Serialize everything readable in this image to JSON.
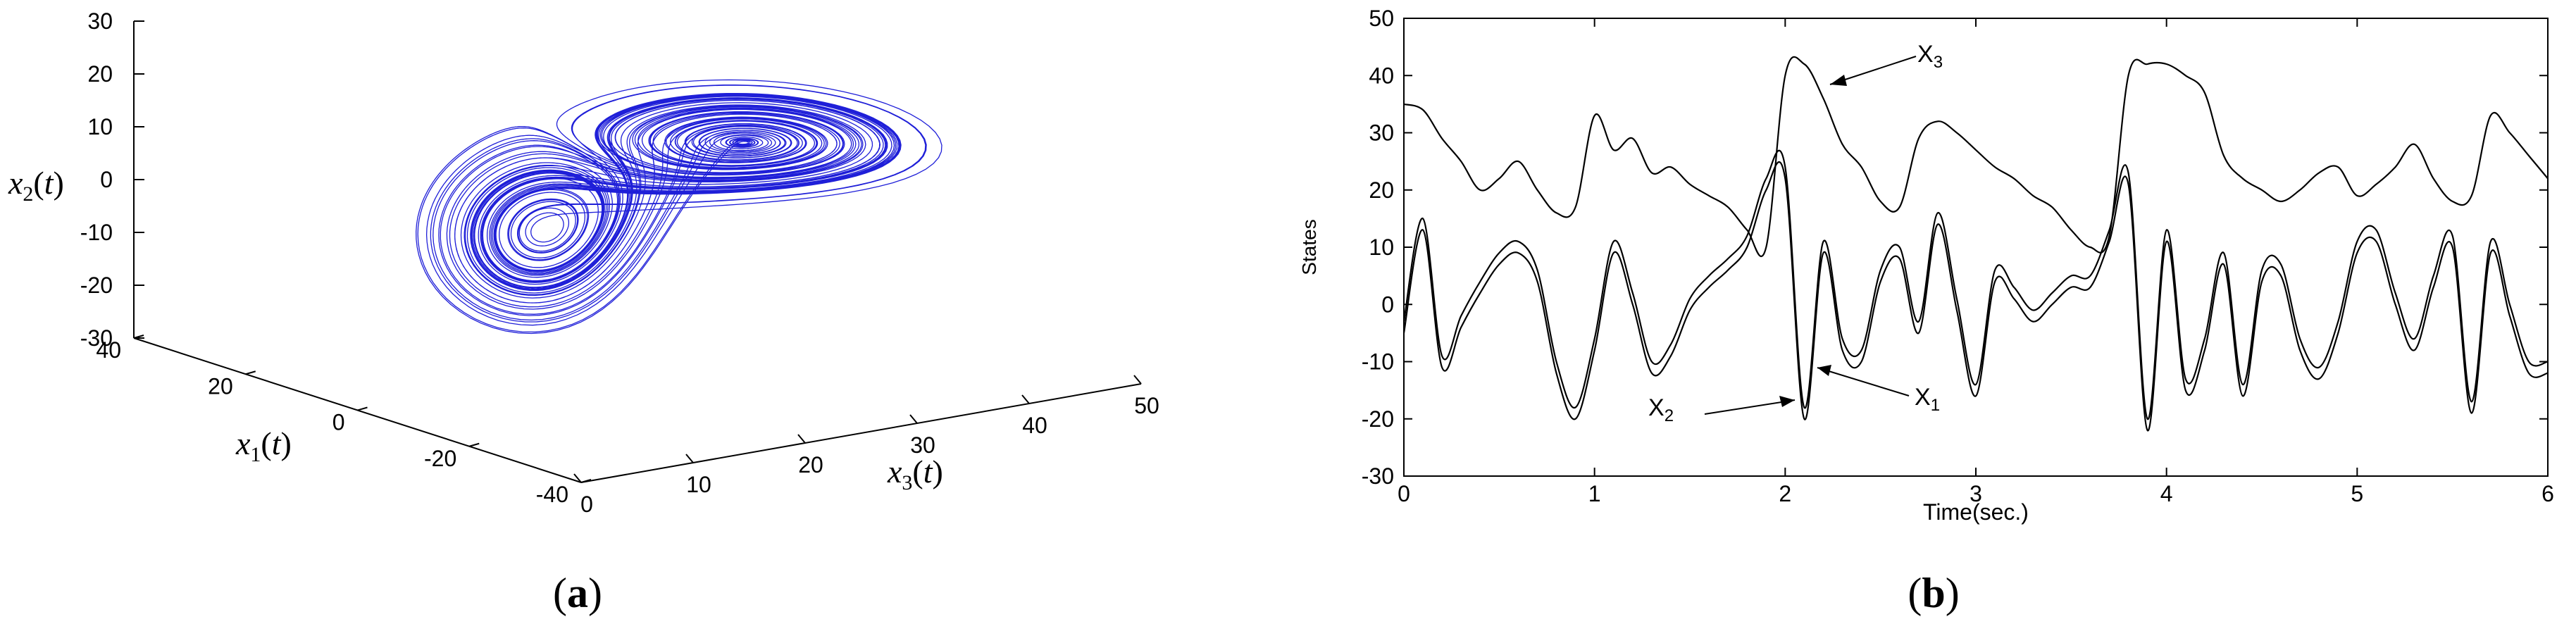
{
  "panels": {
    "a": {
      "caption_prefix": "(",
      "caption_letter": "a",
      "caption_suffix": ")"
    },
    "b": {
      "caption_prefix": "(",
      "caption_letter": "b",
      "caption_suffix": ")"
    }
  },
  "colors": {
    "trajectory": "#1f1fd8",
    "traces": "#000000",
    "axes": "#000000"
  },
  "chart_data": [
    {
      "type": "line",
      "subtype": "3d-phase-portrait",
      "title": "",
      "axes": {
        "x1": {
          "label": "x1(t)",
          "ticks": [
            "40",
            "20",
            "0",
            "-20",
            "-40"
          ],
          "range": [
            -40,
            40
          ]
        },
        "x2": {
          "label": "x2(t)",
          "ticks": [
            "30",
            "20",
            "10",
            "0",
            "-10",
            "-20",
            "-30"
          ],
          "range": [
            -30,
            30
          ]
        },
        "x3": {
          "label": "x3(t)",
          "ticks": [
            "0",
            "10",
            "20",
            "30",
            "40",
            "50"
          ],
          "range": [
            0,
            50
          ]
        }
      },
      "grid": false,
      "legend": "none",
      "series": [
        {
          "description": "chaotic double-scroll attractor trajectory in (x1, x2, x3)"
        }
      ]
    },
    {
      "type": "line",
      "title": "",
      "xlabel": "Time(sec.)",
      "ylabel": "States",
      "xlim": [
        0,
        6
      ],
      "ylim": [
        -30,
        50
      ],
      "xticks": [
        "0",
        "1",
        "2",
        "3",
        "4",
        "5",
        "6"
      ],
      "yticks": [
        "50",
        "40",
        "30",
        "20",
        "10",
        "0",
        "-10",
        "-20",
        "-30"
      ],
      "grid": false,
      "legend": "none",
      "annotations": [
        {
          "text": "X3",
          "points_to": [
            2.15,
            38
          ]
        },
        {
          "text": "X2",
          "points_to": [
            2.02,
            -19
          ]
        },
        {
          "text": "X1",
          "points_to": [
            2.12,
            -13
          ]
        }
      ],
      "series": [
        {
          "name": "X1",
          "x": [
            0,
            0.1,
            0.2,
            0.3,
            0.4,
            0.5,
            0.6,
            0.7,
            0.8,
            0.9,
            1.0,
            1.1,
            1.2,
            1.3,
            1.4,
            1.5,
            1.6,
            1.7,
            1.8,
            1.9,
            2.0,
            2.1,
            2.2,
            2.3,
            2.4,
            2.5,
            2.6,
            2.7,
            2.8,
            2.9,
            3.0,
            3.1,
            3.2,
            3.3,
            3.4,
            3.5,
            3.6,
            3.7,
            3.8,
            3.9,
            4.0,
            4.1,
            4.2,
            4.3,
            4.4,
            4.5,
            4.6,
            4.7,
            4.8,
            4.9,
            5.0,
            5.1,
            5.2,
            5.3,
            5.4,
            5.5,
            5.6,
            5.7,
            5.8,
            5.9,
            6.0
          ],
          "y": [
            -3,
            15,
            -9,
            -2,
            4,
            9,
            11,
            6,
            -10,
            -18,
            -6,
            11,
            2,
            -10,
            -7,
            1,
            5,
            8,
            12,
            22,
            24,
            -18,
            11,
            -6,
            -8,
            6,
            10,
            -3,
            16,
            1,
            -14,
            6,
            3,
            -1,
            2,
            5,
            5,
            13,
            23,
            -20,
            13,
            -13,
            -6,
            9,
            -14,
            6,
            7,
            -6,
            -11,
            -3,
            11,
            13,
            2,
            -6,
            5,
            12,
            -17,
            11,
            0,
            -10,
            -10
          ]
        },
        {
          "name": "X2",
          "x": [
            0,
            0.1,
            0.2,
            0.3,
            0.4,
            0.5,
            0.6,
            0.7,
            0.8,
            0.9,
            1.0,
            1.1,
            1.2,
            1.3,
            1.4,
            1.5,
            1.6,
            1.7,
            1.8,
            1.9,
            2.0,
            2.1,
            2.2,
            2.3,
            2.4,
            2.5,
            2.6,
            2.7,
            2.8,
            2.9,
            3.0,
            3.1,
            3.2,
            3.3,
            3.4,
            3.5,
            3.6,
            3.7,
            3.8,
            3.9,
            4.0,
            4.1,
            4.2,
            4.3,
            4.4,
            4.5,
            4.6,
            4.7,
            4.8,
            4.9,
            5.0,
            5.1,
            5.2,
            5.3,
            5.4,
            5.5,
            5.6,
            5.7,
            5.8,
            5.9,
            6.0
          ],
          "y": [
            -5,
            13,
            -11,
            -4,
            2,
            7,
            9,
            4,
            -12,
            -20,
            -8,
            9,
            0,
            -12,
            -9,
            -1,
            3,
            6,
            10,
            20,
            22,
            -20,
            9,
            -8,
            -10,
            4,
            8,
            -5,
            14,
            -1,
            -16,
            4,
            1,
            -3,
            0,
            3,
            3,
            11,
            21,
            -22,
            11,
            -15,
            -8,
            7,
            -16,
            4,
            5,
            -8,
            -13,
            -5,
            9,
            11,
            0,
            -8,
            3,
            10,
            -19,
            9,
            -2,
            -12,
            -12
          ]
        },
        {
          "name": "X3",
          "x": [
            0,
            0.1,
            0.2,
            0.3,
            0.4,
            0.5,
            0.6,
            0.7,
            0.8,
            0.9,
            1.0,
            1.1,
            1.2,
            1.3,
            1.4,
            1.5,
            1.6,
            1.7,
            1.8,
            1.9,
            2.0,
            2.1,
            2.2,
            2.3,
            2.4,
            2.5,
            2.6,
            2.7,
            2.8,
            2.9,
            3.0,
            3.1,
            3.2,
            3.3,
            3.4,
            3.5,
            3.6,
            3.7,
            3.8,
            3.9,
            4.0,
            4.1,
            4.2,
            4.3,
            4.4,
            4.5,
            4.6,
            4.7,
            4.8,
            4.9,
            5.0,
            5.1,
            5.2,
            5.3,
            5.4,
            5.5,
            5.6,
            5.7,
            5.8,
            5.9,
            6.0
          ],
          "y": [
            35,
            34,
            29,
            25,
            20,
            22,
            25,
            20,
            16,
            17,
            33,
            27,
            29,
            23,
            24,
            21,
            19,
            17,
            13,
            10,
            40,
            42,
            36,
            28,
            24,
            18,
            17,
            29,
            32,
            30,
            27,
            24,
            22,
            19,
            17,
            13,
            10,
            12,
            40,
            42,
            42,
            40,
            37,
            26,
            22,
            20,
            18,
            20,
            23,
            24,
            19,
            21,
            24,
            28,
            22,
            18,
            19,
            33,
            30,
            26,
            22
          ]
        }
      ]
    }
  ]
}
